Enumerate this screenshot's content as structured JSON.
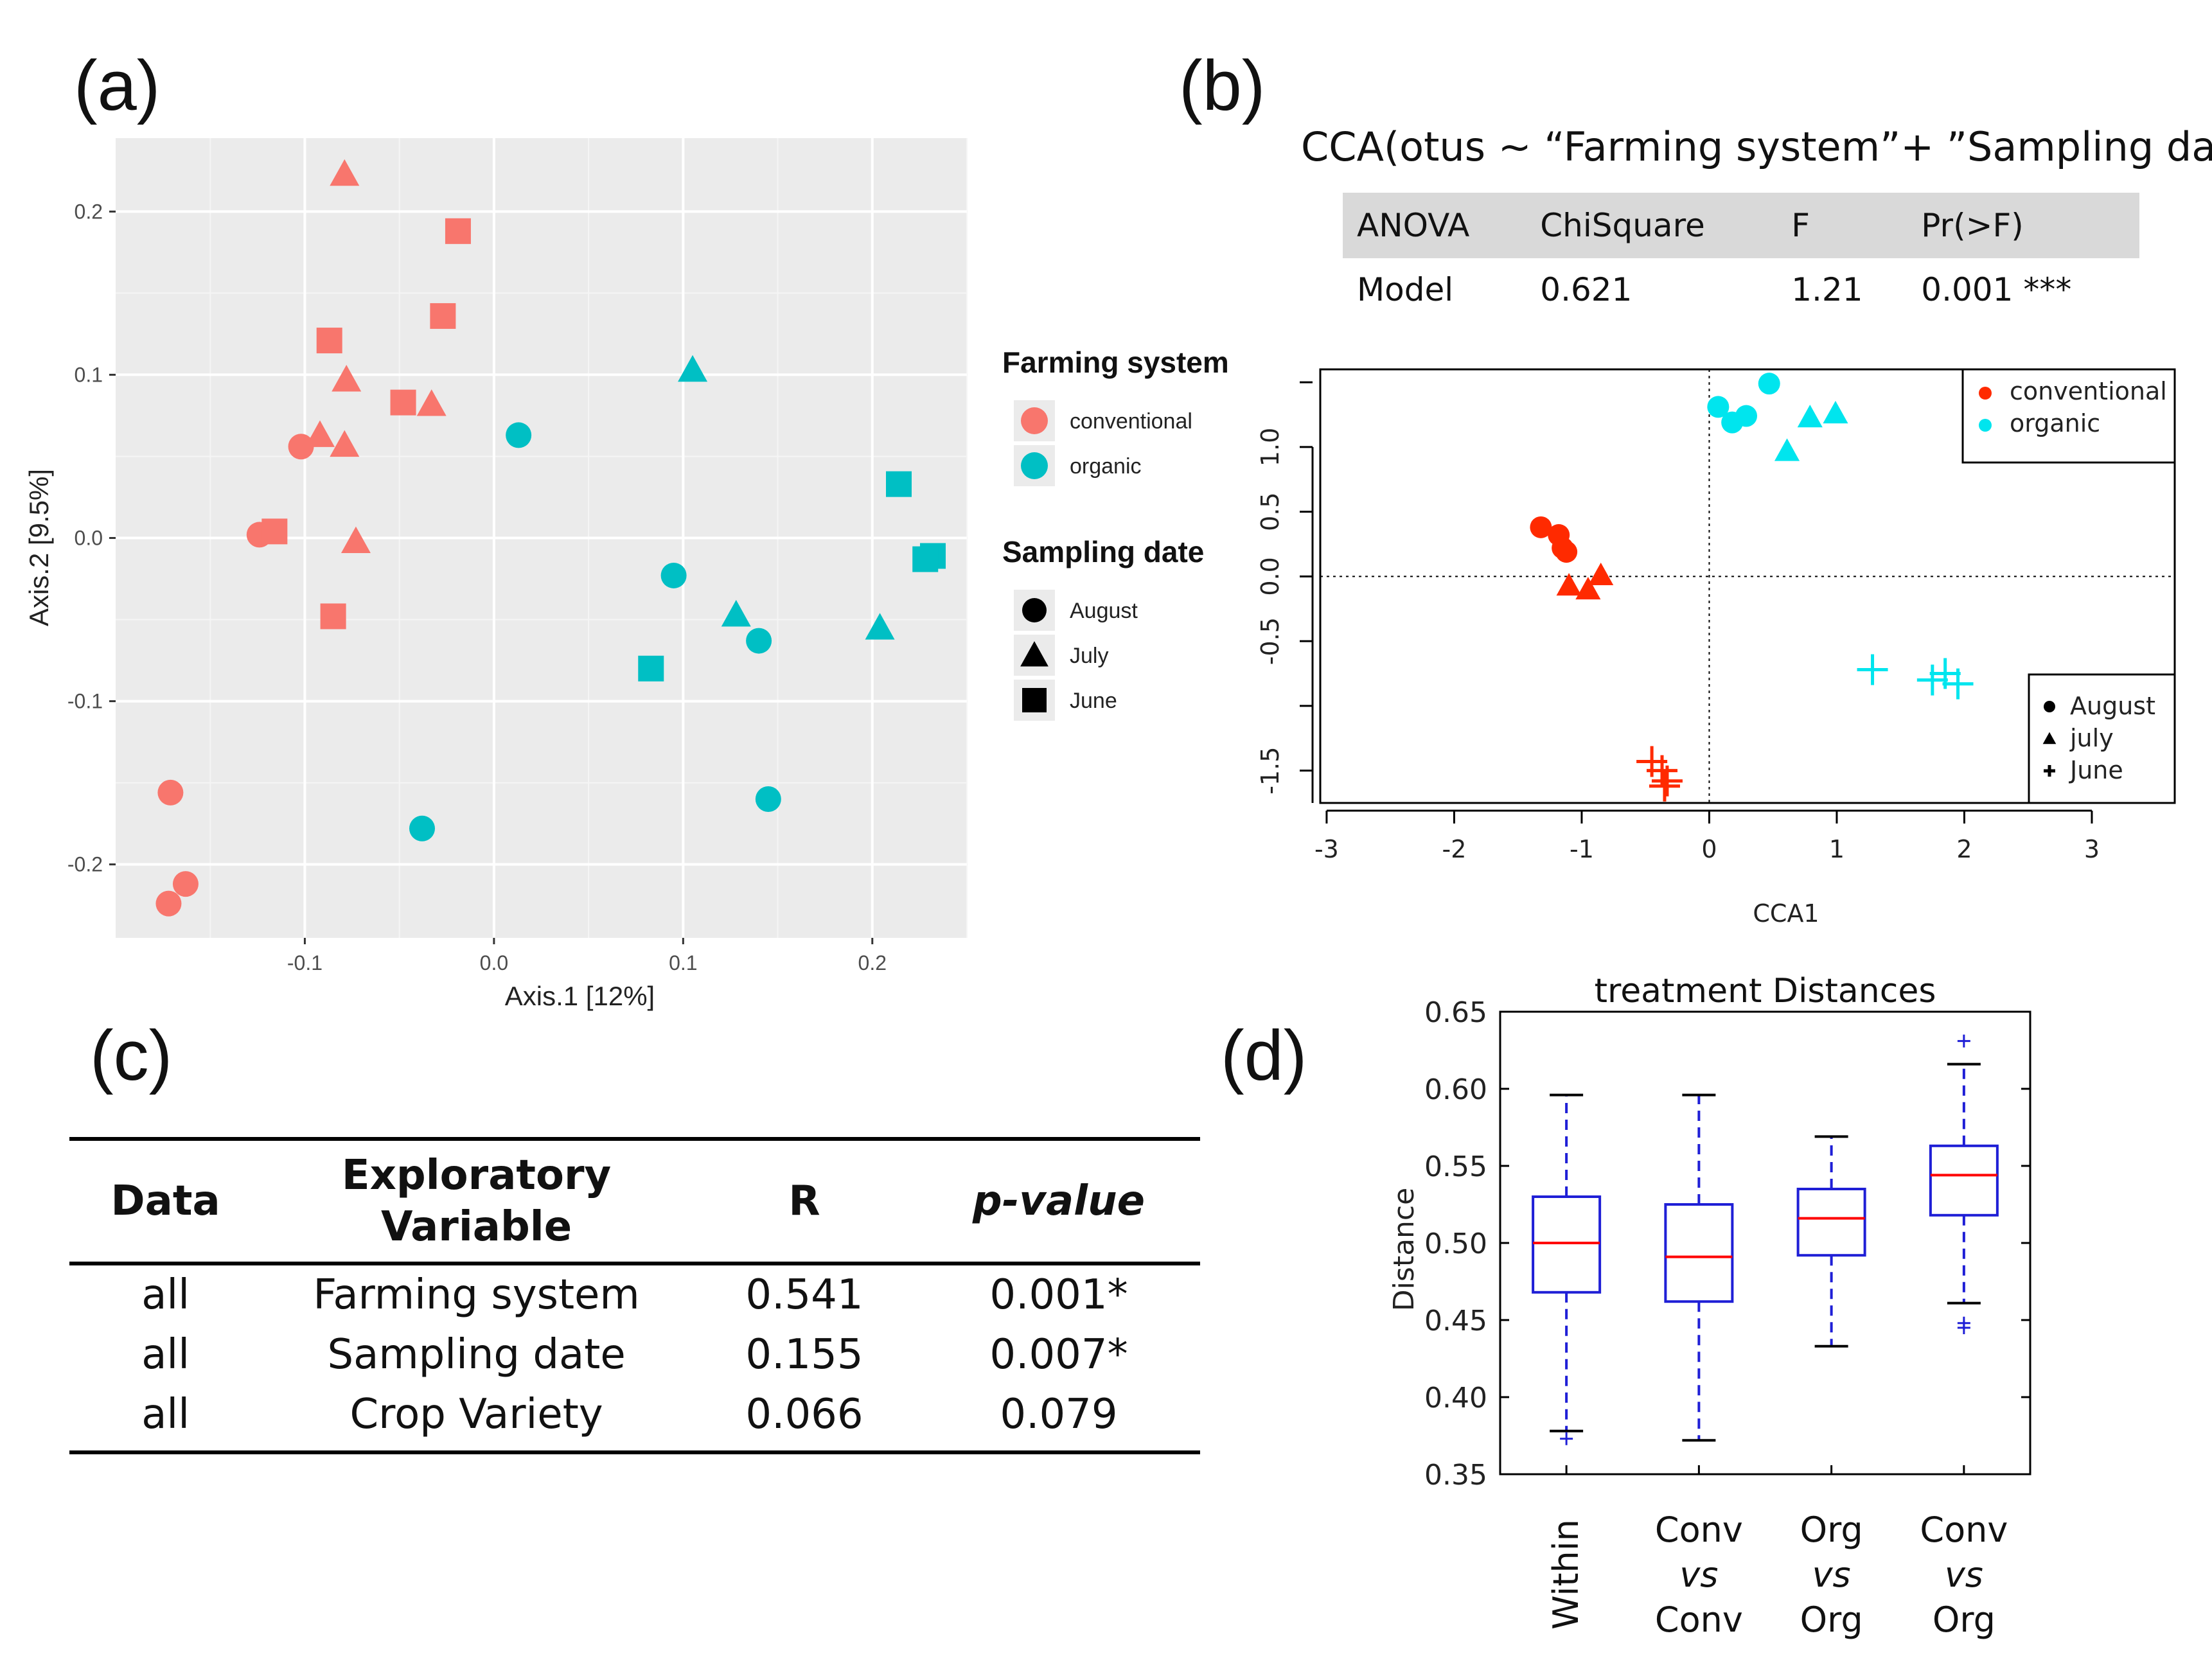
{
  "panel_labels": {
    "a": "(a)",
    "b": "(b)",
    "c": "(c)",
    "d": "(d)"
  },
  "colors": {
    "conventional_a": "#f8766d",
    "organic_a": "#00bfc4",
    "conventional_b": "#ff2a00",
    "organic_b": "#00e5ee",
    "box": "#1f1fd6",
    "median": "#ff0000",
    "panel_bg": "#ebebeb"
  },
  "chart_data": [
    {
      "id": "a",
      "type": "scatter",
      "xlabel": "Axis.1   [12%]",
      "ylabel": "Axis.2   [9.5%]",
      "xlim": [
        -0.2,
        0.25
      ],
      "ylim": [
        -0.245,
        0.245
      ],
      "xticks": [
        -0.1,
        0.0,
        0.1,
        0.2
      ],
      "xtick_labels": [
        "-0.1",
        "0.0",
        "0.1",
        "0.2"
      ],
      "yticks": [
        -0.2,
        -0.1,
        0.0,
        0.1,
        0.2
      ],
      "ytick_labels": [
        "-0.2",
        "-0.1",
        "0.0",
        "0.1",
        "0.2"
      ],
      "legend": {
        "title1": "Farming system",
        "entries1": [
          "conventional",
          "organic"
        ],
        "title2": "Sampling date",
        "entries2": [
          "August",
          "July",
          "June"
        ]
      },
      "points": [
        {
          "x": -0.079,
          "y": 0.223,
          "group": "conventional",
          "date": "July"
        },
        {
          "x": -0.019,
          "y": 0.188,
          "group": "conventional",
          "date": "June"
        },
        {
          "x": -0.027,
          "y": 0.136,
          "group": "conventional",
          "date": "June"
        },
        {
          "x": -0.087,
          "y": 0.121,
          "group": "conventional",
          "date": "June"
        },
        {
          "x": -0.078,
          "y": 0.097,
          "group": "conventional",
          "date": "July"
        },
        {
          "x": -0.048,
          "y": 0.083,
          "group": "conventional",
          "date": "June"
        },
        {
          "x": -0.033,
          "y": 0.082,
          "group": "conventional",
          "date": "July"
        },
        {
          "x": -0.092,
          "y": 0.063,
          "group": "conventional",
          "date": "July"
        },
        {
          "x": -0.102,
          "y": 0.056,
          "group": "conventional",
          "date": "August"
        },
        {
          "x": -0.079,
          "y": 0.057,
          "group": "conventional",
          "date": "July"
        },
        {
          "x": -0.124,
          "y": 0.002,
          "group": "conventional",
          "date": "August"
        },
        {
          "x": -0.116,
          "y": 0.004,
          "group": "conventional",
          "date": "June"
        },
        {
          "x": -0.073,
          "y": -0.002,
          "group": "conventional",
          "date": "July"
        },
        {
          "x": -0.085,
          "y": -0.048,
          "group": "conventional",
          "date": "June"
        },
        {
          "x": -0.171,
          "y": -0.156,
          "group": "conventional",
          "date": "August"
        },
        {
          "x": -0.163,
          "y": -0.212,
          "group": "conventional",
          "date": "August"
        },
        {
          "x": -0.172,
          "y": -0.224,
          "group": "conventional",
          "date": "August"
        },
        {
          "x": 0.105,
          "y": 0.103,
          "group": "organic",
          "date": "July"
        },
        {
          "x": 0.013,
          "y": 0.063,
          "group": "organic",
          "date": "August"
        },
        {
          "x": 0.214,
          "y": 0.033,
          "group": "organic",
          "date": "June"
        },
        {
          "x": 0.232,
          "y": -0.011,
          "group": "organic",
          "date": "June"
        },
        {
          "x": 0.228,
          "y": -0.013,
          "group": "organic",
          "date": "June"
        },
        {
          "x": 0.095,
          "y": -0.023,
          "group": "organic",
          "date": "August"
        },
        {
          "x": 0.128,
          "y": -0.047,
          "group": "organic",
          "date": "July"
        },
        {
          "x": 0.204,
          "y": -0.055,
          "group": "organic",
          "date": "July"
        },
        {
          "x": 0.14,
          "y": -0.063,
          "group": "organic",
          "date": "August"
        },
        {
          "x": 0.083,
          "y": -0.08,
          "group": "organic",
          "date": "June"
        },
        {
          "x": 0.145,
          "y": -0.16,
          "group": "organic",
          "date": "August"
        },
        {
          "x": -0.038,
          "y": -0.178,
          "group": "organic",
          "date": "August"
        }
      ]
    },
    {
      "id": "b",
      "type": "scatter",
      "title": "CCA(otus ~ “Farming system”+ ”Sampling date”)",
      "xlabel": "CCA1",
      "ylabel": "",
      "xlim": [
        -3.05,
        3.65
      ],
      "ylim": [
        -1.75,
        1.6
      ],
      "xticks": [
        -3,
        -2,
        -1,
        0,
        1,
        2,
        3
      ],
      "xtick_labels": [
        "-3",
        "-2",
        "-1",
        "0",
        "1",
        "2",
        "3"
      ],
      "yticks": [
        -1.5,
        -0.5,
        0.0,
        0.5,
        1.0
      ],
      "ytick_labels": [
        "-1.5",
        "-0.5",
        "0.0",
        "0.5",
        "1.0"
      ],
      "anova": {
        "headers": [
          "ANOVA",
          "ChiSquare",
          "F",
          "Pr(>F)"
        ],
        "row": [
          "Model",
          "0.621",
          "1.21",
          "0.001 ***"
        ]
      },
      "legend": {
        "entries1": [
          "conventional",
          "organic"
        ],
        "entries2": [
          "August",
          "july",
          "June"
        ]
      },
      "points": [
        {
          "x": -1.32,
          "y": 0.38,
          "group": "conventional",
          "date": "August"
        },
        {
          "x": -1.18,
          "y": 0.32,
          "group": "conventional",
          "date": "August"
        },
        {
          "x": -1.15,
          "y": 0.22,
          "group": "conventional",
          "date": "August"
        },
        {
          "x": -1.12,
          "y": 0.19,
          "group": "conventional",
          "date": "August"
        },
        {
          "x": -1.1,
          "y": -0.07,
          "group": "conventional",
          "date": "July"
        },
        {
          "x": -0.95,
          "y": -0.1,
          "group": "conventional",
          "date": "July"
        },
        {
          "x": -0.85,
          "y": 0.01,
          "group": "conventional",
          "date": "July"
        },
        {
          "x": -0.45,
          "y": -1.43,
          "group": "conventional",
          "date": "June"
        },
        {
          "x": -0.37,
          "y": -1.5,
          "group": "conventional",
          "date": "June"
        },
        {
          "x": -0.33,
          "y": -1.58,
          "group": "conventional",
          "date": "June"
        },
        {
          "x": -0.35,
          "y": -1.62,
          "group": "conventional",
          "date": "June"
        },
        {
          "x": 0.07,
          "y": 1.31,
          "group": "organic",
          "date": "August"
        },
        {
          "x": 0.18,
          "y": 1.19,
          "group": "organic",
          "date": "August"
        },
        {
          "x": 0.29,
          "y": 1.24,
          "group": "organic",
          "date": "August"
        },
        {
          "x": 0.47,
          "y": 1.49,
          "group": "organic",
          "date": "August"
        },
        {
          "x": 0.61,
          "y": 0.97,
          "group": "organic",
          "date": "July"
        },
        {
          "x": 0.79,
          "y": 1.23,
          "group": "organic",
          "date": "July"
        },
        {
          "x": 0.99,
          "y": 1.26,
          "group": "organic",
          "date": "July"
        },
        {
          "x": 1.28,
          "y": -0.72,
          "group": "organic",
          "date": "June"
        },
        {
          "x": 1.75,
          "y": -0.8,
          "group": "organic",
          "date": "June"
        },
        {
          "x": 1.85,
          "y": -0.75,
          "group": "organic",
          "date": "June"
        },
        {
          "x": 1.95,
          "y": -0.83,
          "group": "organic",
          "date": "June"
        }
      ]
    },
    {
      "id": "c",
      "type": "table",
      "headers": [
        "Data",
        "Exploratory Variable",
        "R",
        "p-value"
      ],
      "rows": [
        [
          "all",
          "Farming system",
          "0.541",
          "0.001*"
        ],
        [
          "all",
          "Sampling date",
          "0.155",
          "0.007*"
        ],
        [
          "all",
          "Crop Variety",
          "0.066",
          "0.079"
        ]
      ]
    },
    {
      "id": "d",
      "type": "box",
      "title": "treatment Distances",
      "ylabel": "Distance",
      "ylim": [
        0.35,
        0.65
      ],
      "yticks": [
        0.35,
        0.4,
        0.45,
        0.5,
        0.55,
        0.6,
        0.65
      ],
      "ytick_labels": [
        "0.35",
        "0.40",
        "0.45",
        "0.50",
        "0.55",
        "0.60",
        "0.65"
      ],
      "categories": [
        {
          "lines": [
            "Within"
          ],
          "rotated": true
        },
        {
          "lines": [
            "Conv",
            "vs",
            "Conv"
          ]
        },
        {
          "lines": [
            "Org",
            "vs",
            "Org"
          ]
        },
        {
          "lines": [
            "Conv",
            "vs",
            "Org"
          ]
        }
      ],
      "boxes": [
        {
          "whisker_low": 0.378,
          "q1": 0.468,
          "median": 0.5,
          "q3": 0.53,
          "whisker_high": 0.596,
          "outliers": [
            0.373
          ]
        },
        {
          "whisker_low": 0.372,
          "q1": 0.462,
          "median": 0.491,
          "q3": 0.525,
          "whisker_high": 0.596,
          "outliers": []
        },
        {
          "whisker_low": 0.433,
          "q1": 0.492,
          "median": 0.516,
          "q3": 0.535,
          "whisker_high": 0.569,
          "outliers": []
        },
        {
          "whisker_low": 0.461,
          "q1": 0.518,
          "median": 0.544,
          "q3": 0.563,
          "whisker_high": 0.616,
          "outliers": [
            0.631,
            0.448,
            0.445
          ]
        }
      ]
    }
  ]
}
